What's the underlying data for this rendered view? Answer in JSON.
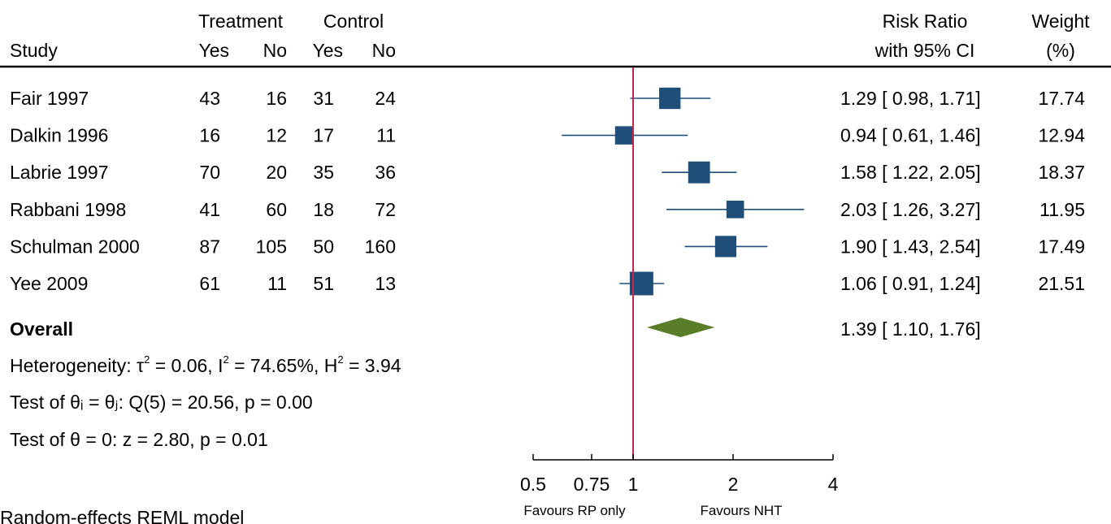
{
  "chart_data": {
    "type": "forest",
    "header": {
      "study": "Study",
      "treatment": "Treatment",
      "control": "Control",
      "yes": "Yes",
      "no": "No",
      "rr_line1": "Risk Ratio",
      "rr_line2": "with 95% CI",
      "weight_line1": "Weight",
      "weight_line2": "(%)"
    },
    "studies": [
      {
        "name": "Fair 1997",
        "t_yes": "43",
        "t_no": "16",
        "c_yes": "31",
        "c_no": "24",
        "rr": 1.29,
        "lo": 0.98,
        "hi": 1.71,
        "ci_text": "1.29 [ 0.98,  1.71]",
        "weight": 17.74,
        "weight_text": "17.74"
      },
      {
        "name": "Dalkin 1996",
        "t_yes": "16",
        "t_no": "12",
        "c_yes": "17",
        "c_no": "11",
        "rr": 0.94,
        "lo": 0.61,
        "hi": 1.46,
        "ci_text": "0.94 [ 0.61,  1.46]",
        "weight": 12.94,
        "weight_text": "12.94"
      },
      {
        "name": "Labrie 1997",
        "t_yes": "70",
        "t_no": "20",
        "c_yes": "35",
        "c_no": "36",
        "rr": 1.58,
        "lo": 1.22,
        "hi": 2.05,
        "ci_text": "1.58 [ 1.22,  2.05]",
        "weight": 18.37,
        "weight_text": "18.37"
      },
      {
        "name": "Rabbani 1998",
        "t_yes": "41",
        "t_no": "60",
        "c_yes": "18",
        "c_no": "72",
        "rr": 2.03,
        "lo": 1.26,
        "hi": 3.27,
        "ci_text": "2.03 [ 1.26,  3.27]",
        "weight": 11.95,
        "weight_text": "11.95"
      },
      {
        "name": "Schulman 2000",
        "t_yes": "87",
        "t_no": "105",
        "c_yes": "50",
        "c_no": "160",
        "rr": 1.9,
        "lo": 1.43,
        "hi": 2.54,
        "ci_text": "1.90 [ 1.43,  2.54]",
        "weight": 17.49,
        "weight_text": "17.49"
      },
      {
        "name": "Yee 2009",
        "t_yes": "61",
        "t_no": "11",
        "c_yes": "51",
        "c_no": "13",
        "rr": 1.06,
        "lo": 0.91,
        "hi": 1.24,
        "ci_text": "1.06 [ 0.91,  1.24]",
        "weight": 21.51,
        "weight_text": "21.51"
      }
    ],
    "overall": {
      "label": "Overall",
      "rr": 1.39,
      "lo": 1.1,
      "hi": 1.76,
      "ci_text": "1.39 [ 1.10,  1.76]"
    },
    "heterogeneity": {
      "prefix": "Heterogeneity: ",
      "tau2": "0.06",
      "i2": "74.65%",
      "h2": "3.94"
    },
    "test_equal": "Test of θᵢ = θⱼ: Q(5) = 20.56, p = 0.00",
    "test_zero": "Test of θ = 0: z = 2.80, p = 0.01",
    "model": "Random-effects REML model",
    "x_axis": {
      "scale": "log",
      "ticks": [
        0.5,
        0.75,
        1,
        2,
        4
      ],
      "tick_labels": [
        "0.5",
        "0.75",
        "1",
        "2",
        "4"
      ],
      "range": [
        0.5,
        4
      ]
    },
    "favours_left": "Favours RP only",
    "favours_right": "Favours NHT",
    "reference_line": 1,
    "colors": {
      "marker": "#1f4e79",
      "ci_line": "#1f4e79",
      "diamond": "#5a7d2a",
      "ref_line": "#c0294a"
    }
  }
}
